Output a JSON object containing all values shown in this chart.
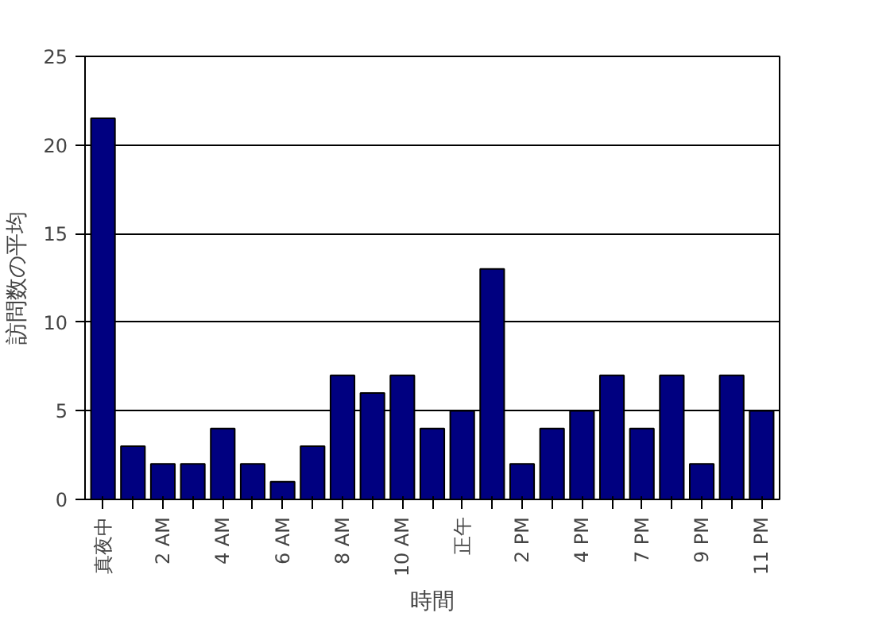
{
  "chart_data": {
    "type": "bar",
    "xlabel": "時間",
    "ylabel": "訪問数の平均",
    "categories": [
      "真夜中",
      null,
      "2 AM",
      null,
      "4 AM",
      null,
      "6 AM",
      null,
      "8 AM",
      null,
      "10 AM",
      null,
      "正午",
      null,
      "2 PM",
      null,
      "4 PM",
      null,
      "7 PM",
      null,
      "9 PM",
      null,
      "11 PM"
    ],
    "values": [
      21.5,
      3,
      2,
      2,
      4,
      2,
      1,
      3,
      7,
      6,
      7,
      4,
      5,
      13,
      2,
      4,
      5,
      7,
      4,
      7,
      2,
      7,
      5
    ],
    "color": "#000080",
    "ylim": [
      0,
      25
    ],
    "yticks": [
      0,
      5,
      10,
      15,
      20,
      25
    ],
    "grid": "y"
  }
}
